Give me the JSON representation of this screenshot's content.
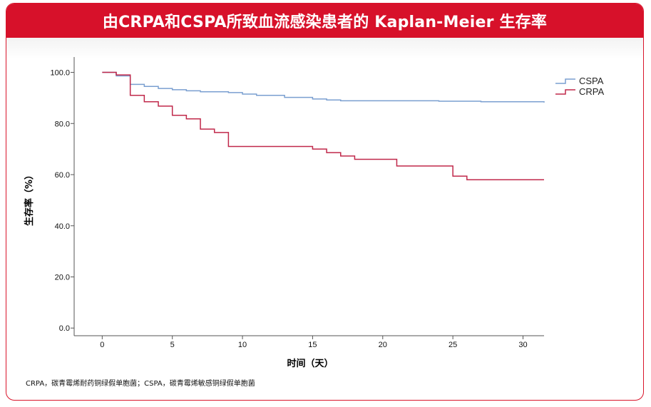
{
  "page": {
    "title": "由CRPA和CSPA所致血流感染患者的 Kaplan-Meier 生存率",
    "footnote": "CRPA，碳青霉烯耐药铜绿假单胞菌；CSPA，碳青霉烯敏感铜绿假单胞菌"
  },
  "chart_data": {
    "type": "line",
    "title": "由CRPA和CSPA所致血流感染患者的 Kaplan-Meier 生存率",
    "xlabel": "时间（天）",
    "ylabel": "生存率（%）",
    "xlim": [
      -2,
      31.5
    ],
    "ylim": [
      -3,
      106
    ],
    "xticks": [
      0,
      5,
      10,
      15,
      20,
      25,
      30
    ],
    "xtick_labels": [
      "0",
      "5",
      "10",
      "15",
      "20",
      "25",
      "30"
    ],
    "yticks": [
      0,
      20,
      40,
      60,
      80,
      100
    ],
    "ytick_labels": [
      "0.0",
      "20.0",
      "40.0",
      "60.0",
      "80.0",
      "100.0"
    ],
    "grid": false,
    "legend_position": "top-right",
    "series": [
      {
        "name": "CSPA",
        "color": "#7a9fd0",
        "steps": [
          [
            0,
            100
          ],
          [
            1,
            98.6
          ],
          [
            2,
            95.3
          ],
          [
            3,
            94.5
          ],
          [
            4,
            93.7
          ],
          [
            5,
            93.2
          ],
          [
            6,
            92.8
          ],
          [
            7,
            92.4
          ],
          [
            9,
            92.1
          ],
          [
            10,
            91.5
          ],
          [
            11,
            91.0
          ],
          [
            13,
            90.2
          ],
          [
            15,
            89.6
          ],
          [
            16,
            89.2
          ],
          [
            17,
            88.9
          ],
          [
            24,
            88.7
          ],
          [
            27,
            88.5
          ],
          [
            31.5,
            88.2
          ]
        ]
      },
      {
        "name": "CRPA",
        "color": "#c0284a",
        "steps": [
          [
            0,
            100
          ],
          [
            1,
            99.0
          ],
          [
            2,
            91.0
          ],
          [
            3,
            88.5
          ],
          [
            4,
            86.8
          ],
          [
            5,
            83.2
          ],
          [
            6,
            81.8
          ],
          [
            7,
            77.8
          ],
          [
            8,
            76.5
          ],
          [
            9,
            71.0
          ],
          [
            15,
            70.0
          ],
          [
            16,
            68.6
          ],
          [
            17,
            67.3
          ],
          [
            18,
            66.0
          ],
          [
            21,
            63.4
          ],
          [
            25,
            59.4
          ],
          [
            26,
            58.0
          ],
          [
            31.5,
            58.0
          ]
        ]
      }
    ]
  }
}
